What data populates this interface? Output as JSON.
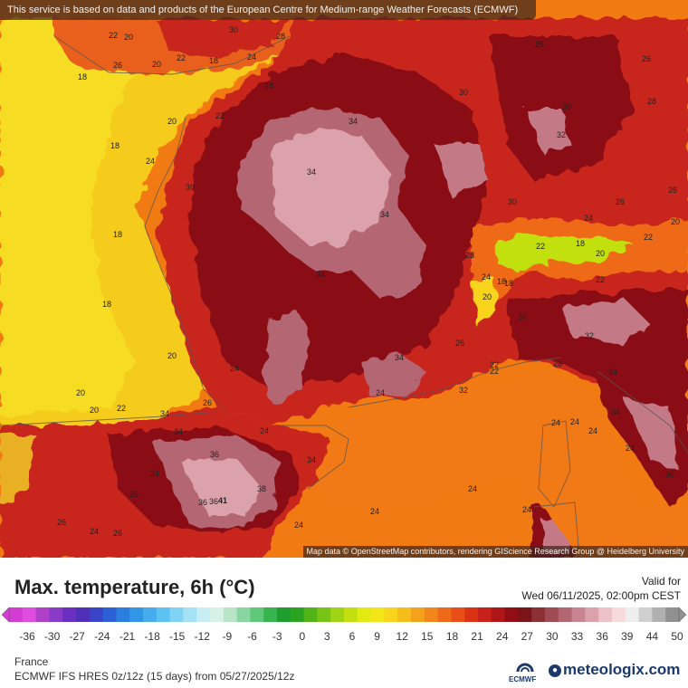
{
  "header": {
    "notice": "This service is based on data and products of the European Centre for Medium-range Weather Forecasts (ECMWF)"
  },
  "map": {
    "attribution": "Map data © OpenStreetMap contributors, rendering GIScience Research Group @ Heidelberg University",
    "colors": {
      "sea_cool": "#f2c21a",
      "sea_yellow": "#f5d21c",
      "sea_orange": "#f27a12",
      "land_red": "#c8261a",
      "land_dark": "#8a1014",
      "hot_pink": "#c47a86",
      "very_hot": "#e8b8c0"
    },
    "labels": [
      {
        "t": "22"
      },
      {
        "t": "20"
      },
      {
        "t": "30"
      },
      {
        "t": "28"
      },
      {
        "t": "26"
      },
      {
        "t": "26"
      },
      {
        "t": "20"
      },
      {
        "t": "22"
      },
      {
        "t": "18"
      },
      {
        "t": "24"
      },
      {
        "t": "18"
      },
      {
        "t": "24"
      },
      {
        "t": "30"
      },
      {
        "t": "26"
      },
      {
        "t": "20"
      },
      {
        "t": "22"
      },
      {
        "t": "34"
      },
      {
        "t": "30"
      },
      {
        "t": "28"
      },
      {
        "t": "18"
      },
      {
        "t": "24"
      },
      {
        "t": "30"
      },
      {
        "t": "34"
      },
      {
        "t": "32"
      },
      {
        "t": "30"
      },
      {
        "t": "26"
      },
      {
        "t": "18"
      },
      {
        "t": "34"
      },
      {
        "t": "26"
      },
      {
        "t": "22"
      },
      {
        "t": "28"
      },
      {
        "t": "24"
      },
      {
        "t": "20"
      },
      {
        "t": "18"
      },
      {
        "t": "20"
      },
      {
        "t": "22"
      },
      {
        "t": "34"
      },
      {
        "t": "18"
      },
      {
        "t": "24"
      },
      {
        "t": "18"
      },
      {
        "t": "22"
      },
      {
        "t": "20"
      },
      {
        "t": "26"
      },
      {
        "t": "22"
      },
      {
        "t": "30"
      },
      {
        "t": "18"
      },
      {
        "t": "20"
      },
      {
        "t": "24"
      },
      {
        "t": "34"
      },
      {
        "t": "20"
      },
      {
        "t": "20"
      },
      {
        "t": "22"
      },
      {
        "t": "34"
      },
      {
        "t": "26"
      },
      {
        "t": "24"
      },
      {
        "t": "22"
      },
      {
        "t": "32"
      },
      {
        "t": "34"
      },
      {
        "t": "32"
      },
      {
        "t": "24"
      },
      {
        "t": "24"
      },
      {
        "t": "34"
      },
      {
        "t": "36"
      },
      {
        "t": "26"
      },
      {
        "t": "24"
      },
      {
        "t": "36"
      },
      {
        "t": "34"
      },
      {
        "t": "38"
      },
      {
        "t": "36"
      },
      {
        "t": "41"
      },
      {
        "t": "24"
      },
      {
        "t": "24"
      },
      {
        "t": "26"
      },
      {
        "t": "24"
      },
      {
        "t": "26"
      },
      {
        "t": "24"
      },
      {
        "t": "24"
      },
      {
        "t": "24"
      },
      {
        "t": "34"
      },
      {
        "t": "24"
      },
      {
        "t": "36"
      },
      {
        "t": "28"
      },
      {
        "t": "24"
      }
    ]
  },
  "legend": {
    "title": "Max. temperature, 6h (°C)",
    "valid_label": "Valid for",
    "valid_time": "Wed 06/11/2025, 02:00pm CEST",
    "ticks": [
      "-36",
      "-30",
      "-27",
      "-24",
      "-21",
      "-18",
      "-15",
      "-12",
      "-9",
      "-6",
      "-3",
      "0",
      "3",
      "6",
      "9",
      "12",
      "15",
      "18",
      "21",
      "24",
      "27",
      "30",
      "33",
      "36",
      "39",
      "44",
      "50"
    ],
    "colors": [
      "#d23cd2",
      "#e04ce0",
      "#b040c8",
      "#8a3ac8",
      "#6a2ec0",
      "#5030b8",
      "#3a44c8",
      "#2c60d4",
      "#2a7ee0",
      "#3296e8",
      "#46acee",
      "#5cc2f2",
      "#7ed2f4",
      "#a6e2f6",
      "#c6eef4",
      "#d6f2e6",
      "#b8e4c8",
      "#8ad6a0",
      "#5ec878",
      "#36b44e",
      "#1e9e2e",
      "#2aa420",
      "#50b418",
      "#78c416",
      "#9ed414",
      "#c2e010",
      "#e2ea12",
      "#f4e616",
      "#f8d41a",
      "#f6bc1c",
      "#f4a21c",
      "#f2861a",
      "#ee6a18",
      "#e84e16",
      "#dc3214",
      "#c8201a",
      "#ae1618",
      "#920e14",
      "#7a1418",
      "#8c3036",
      "#a04a54",
      "#b46672",
      "#c88490",
      "#dca2ac",
      "#ecc2c8",
      "#f6dadc",
      "#eeeeee",
      "#cfcfcf",
      "#b0b0b0",
      "#909090"
    ]
  },
  "footer": {
    "region": "France",
    "model": "ECMWF IFS HRES 0z/12z (15 days) from 05/27/2025/12z",
    "ecmwf_logo": "ECMWF",
    "brand": "meteologix.com"
  }
}
